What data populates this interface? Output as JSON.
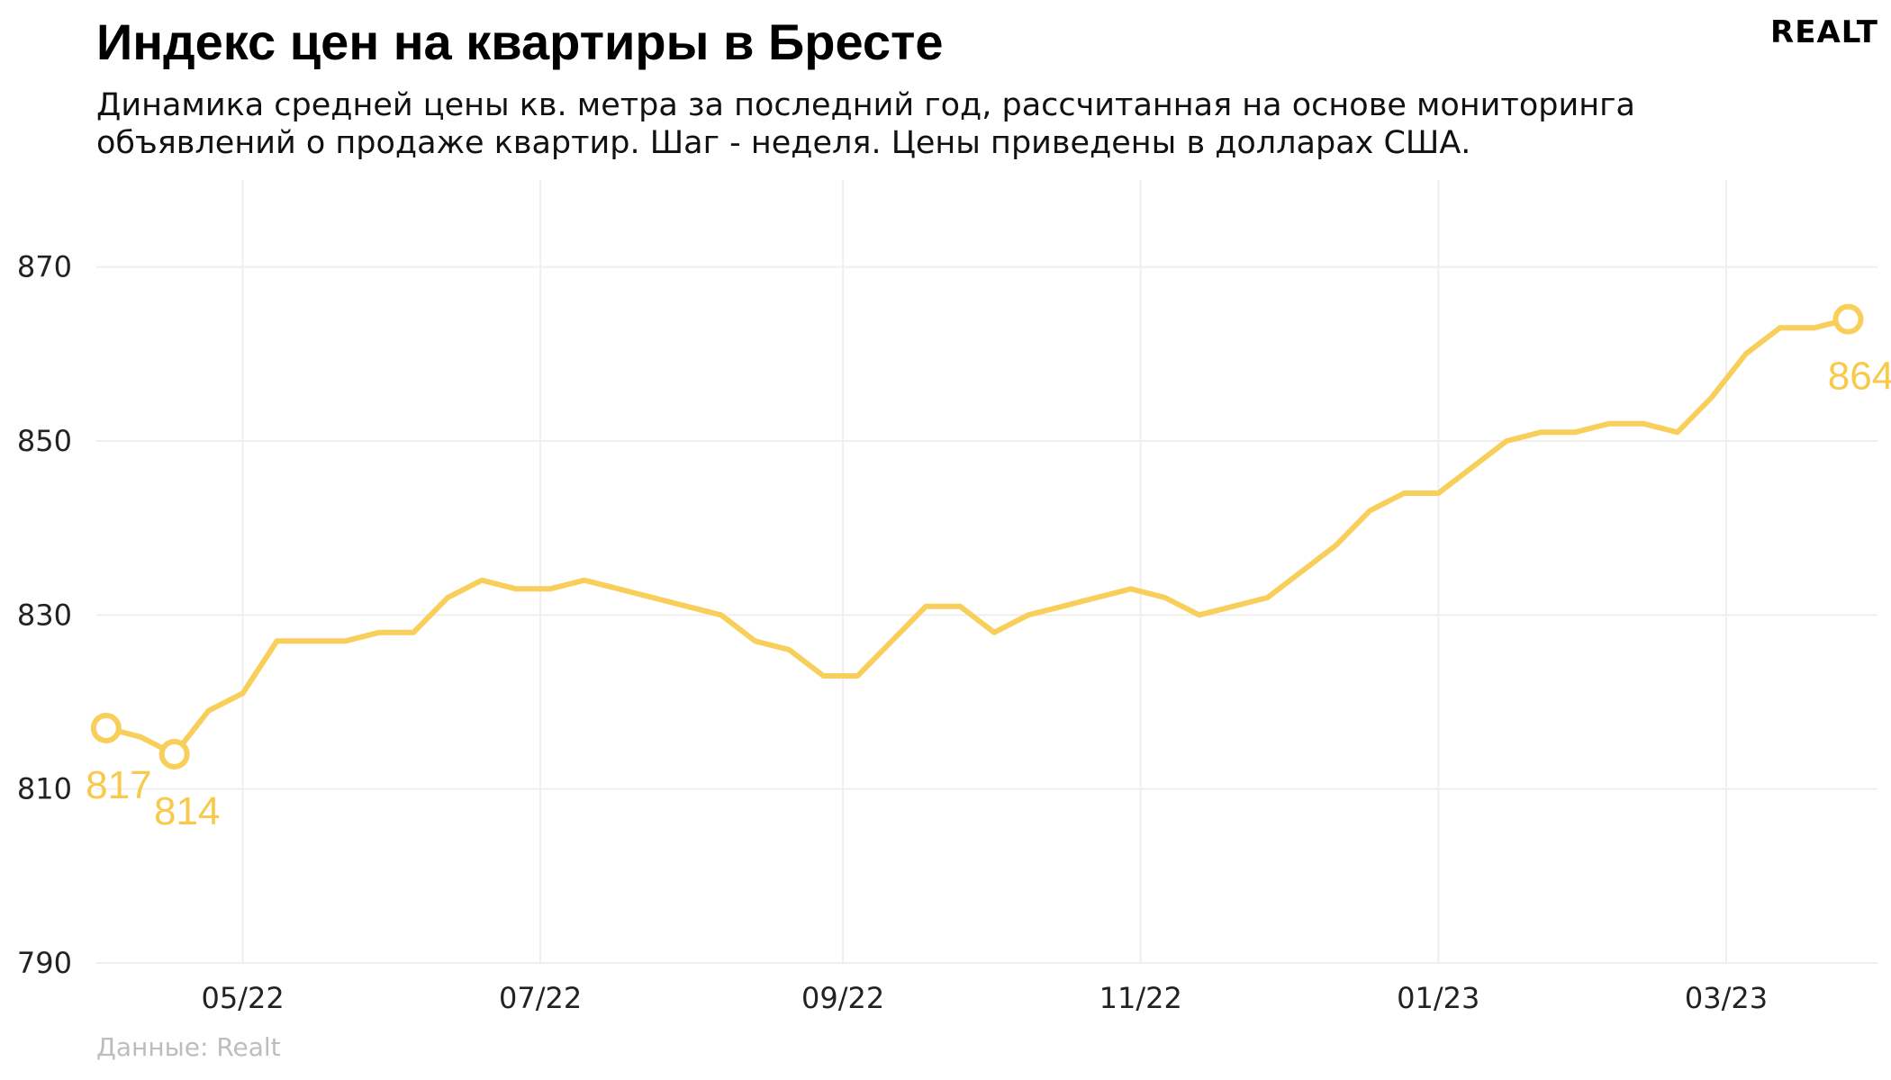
{
  "header": {
    "title": "Индекс цен на квартиры в Бресте",
    "subtitle": "Динамика средней цены кв. метра за последний год, рассчитанная на основе мониторинга объявлений о продаже квартир. Шаг - неделя. Цены приведены в долларах США.",
    "logo": "REALT"
  },
  "footer": {
    "source": "Данные: Realt"
  },
  "colors": {
    "line": "#f8cf5a",
    "grid": "#efefef",
    "label": "#f8c94a"
  },
  "chart_data": {
    "type": "line",
    "title": "Индекс цен на квартиры в Бресте",
    "xlabel": "",
    "ylabel": "",
    "ylim": [
      790,
      880
    ],
    "yticks": [
      790,
      810,
      830,
      850,
      870
    ],
    "xtick_labels": [
      "05/22",
      "07/22",
      "09/22",
      "11/22",
      "01/23",
      "03/23"
    ],
    "xtick_dates": [
      "2022-05-01",
      "2022-07-01",
      "2022-09-01",
      "2022-11-01",
      "2023-01-01",
      "2023-03-01"
    ],
    "x_start": "2022-04-01",
    "x_end": "2023-04-01",
    "grid": true,
    "series": [
      {
        "name": "",
        "x": [
          "2022-04-03",
          "2022-04-10",
          "2022-04-17",
          "2022-04-24",
          "2022-05-01",
          "2022-05-08",
          "2022-05-15",
          "2022-05-22",
          "2022-05-29",
          "2022-06-05",
          "2022-06-12",
          "2022-06-19",
          "2022-06-26",
          "2022-07-03",
          "2022-07-10",
          "2022-07-17",
          "2022-07-24",
          "2022-07-31",
          "2022-08-07",
          "2022-08-14",
          "2022-08-21",
          "2022-08-28",
          "2022-09-04",
          "2022-09-11",
          "2022-09-18",
          "2022-09-25",
          "2022-10-02",
          "2022-10-09",
          "2022-10-16",
          "2022-10-23",
          "2022-10-30",
          "2022-11-06",
          "2022-11-13",
          "2022-11-20",
          "2022-11-27",
          "2022-12-04",
          "2022-12-11",
          "2022-12-18",
          "2022-12-25",
          "2023-01-01",
          "2023-01-08",
          "2023-01-15",
          "2023-01-22",
          "2023-01-29",
          "2023-02-05",
          "2023-02-12",
          "2023-02-19",
          "2023-02-26",
          "2023-03-05",
          "2023-03-12",
          "2023-03-19",
          "2023-03-26"
        ],
        "values": [
          817,
          816,
          814,
          819,
          821,
          827,
          827,
          827,
          828,
          828,
          832,
          834,
          833,
          833,
          834,
          833,
          832,
          831,
          830,
          827,
          826,
          823,
          823,
          827,
          831,
          831,
          828,
          830,
          831,
          832,
          833,
          832,
          830,
          831,
          832,
          835,
          838,
          842,
          844,
          844,
          847,
          850,
          851,
          851,
          852,
          852,
          851,
          855,
          860,
          863,
          863,
          864
        ]
      }
    ],
    "annotations": [
      {
        "index": 0,
        "label": "817"
      },
      {
        "index": 2,
        "label": "814"
      },
      {
        "index": 51,
        "label": "864"
      }
    ]
  }
}
